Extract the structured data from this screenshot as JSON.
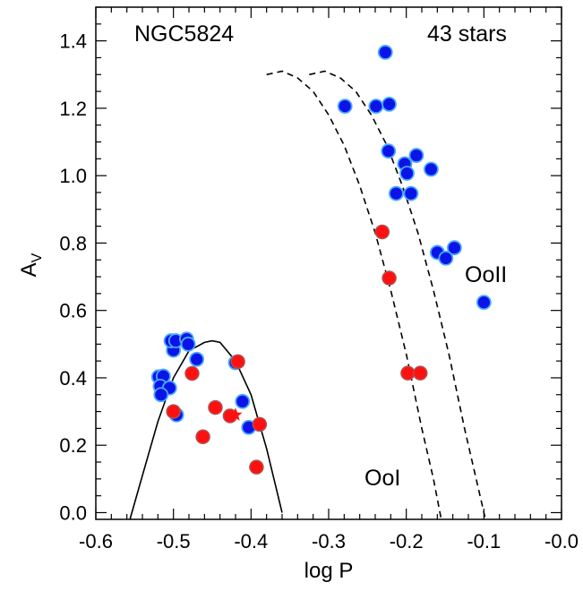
{
  "chart_data": {
    "type": "scatter",
    "xlabel": "log P",
    "ylabel_main": "A",
    "ylabel_sub": "V",
    "xlim": [
      -0.6,
      0.0
    ],
    "ylim": [
      -0.02,
      1.5
    ],
    "xticks": [
      -0.6,
      -0.5,
      -0.4,
      -0.3,
      -0.2,
      -0.1,
      0.0
    ],
    "xtick_labels": [
      "-0.6",
      "-0.5",
      "-0.4",
      "-0.3",
      "-0.2",
      "-0.1",
      "-0.0"
    ],
    "yticks": [
      0.0,
      0.2,
      0.4,
      0.6,
      0.8,
      1.0,
      1.2,
      1.4
    ],
    "ytick_labels": [
      "0.0",
      "0.2",
      "0.4",
      "0.6",
      "0.8",
      "1.0",
      "1.2",
      "1.4"
    ],
    "grid": false,
    "annotations": {
      "cluster": "NGC5824",
      "count": "43 stars",
      "ooi": "OoI",
      "ooii": "OoII"
    },
    "colors": {
      "rrab_fill": "#0a14e6",
      "rrab_edge": "#4aa8ff",
      "rrc_fill": "#ff1010",
      "rrc_edge": "#b05050"
    },
    "series": [
      {
        "marker": "blue-circle",
        "x": [
          -0.227,
          -0.239,
          -0.222,
          -0.279,
          -0.223,
          -0.202,
          -0.187,
          -0.199,
          -0.168,
          -0.213,
          -0.194,
          -0.16,
          -0.149,
          -0.138,
          -0.1,
          -0.519,
          -0.513,
          -0.517,
          -0.505,
          -0.5,
          -0.503,
          -0.497,
          -0.483,
          -0.481,
          -0.47,
          -0.42,
          -0.411,
          -0.403,
          -0.516,
          -0.496
        ],
        "y": [
          1.366,
          1.206,
          1.212,
          1.206,
          1.073,
          1.035,
          1.06,
          1.007,
          1.019,
          0.947,
          0.947,
          0.772,
          0.755,
          0.786,
          0.624,
          0.403,
          0.405,
          0.375,
          0.37,
          0.482,
          0.51,
          0.51,
          0.515,
          0.5,
          0.455,
          0.445,
          0.33,
          0.253,
          0.35,
          0.29
        ]
      },
      {
        "marker": "red-circle",
        "x": [
          -0.231,
          -0.222,
          -0.198,
          -0.182,
          -0.417,
          -0.5,
          -0.476,
          -0.446,
          -0.427,
          -0.462,
          -0.389,
          -0.393
        ],
        "y": [
          0.833,
          0.696,
          0.414,
          0.414,
          0.448,
          0.3,
          0.413,
          0.312,
          0.287,
          0.225,
          0.262,
          0.135
        ]
      },
      {
        "marker": "red-star",
        "x": [
          -0.42
        ],
        "y": [
          0.29
        ]
      }
    ],
    "curves": [
      {
        "style": "solid",
        "x": [
          -0.556,
          -0.54,
          -0.52,
          -0.5,
          -0.48,
          -0.46,
          -0.45,
          -0.44,
          -0.42,
          -0.4,
          -0.38,
          -0.36
        ],
        "y": [
          -0.02,
          0.11,
          0.27,
          0.4,
          0.48,
          0.505,
          0.51,
          0.505,
          0.45,
          0.35,
          0.19,
          0.0
        ]
      },
      {
        "style": "dashed",
        "x": [
          -0.38,
          -0.36,
          -0.34,
          -0.32,
          -0.3,
          -0.28,
          -0.26,
          -0.24,
          -0.22,
          -0.2,
          -0.18,
          -0.165,
          -0.155
        ],
        "y": [
          1.3,
          1.31,
          1.29,
          1.25,
          1.18,
          1.09,
          0.97,
          0.83,
          0.66,
          0.47,
          0.25,
          0.1,
          -0.02
        ]
      },
      {
        "style": "dashed",
        "x": [
          -0.325,
          -0.305,
          -0.285,
          -0.265,
          -0.245,
          -0.225,
          -0.205,
          -0.185,
          -0.165,
          -0.145,
          -0.125,
          -0.11,
          -0.098
        ],
        "y": [
          1.3,
          1.31,
          1.29,
          1.25,
          1.18,
          1.09,
          0.97,
          0.83,
          0.66,
          0.47,
          0.25,
          0.1,
          -0.02
        ]
      }
    ]
  }
}
